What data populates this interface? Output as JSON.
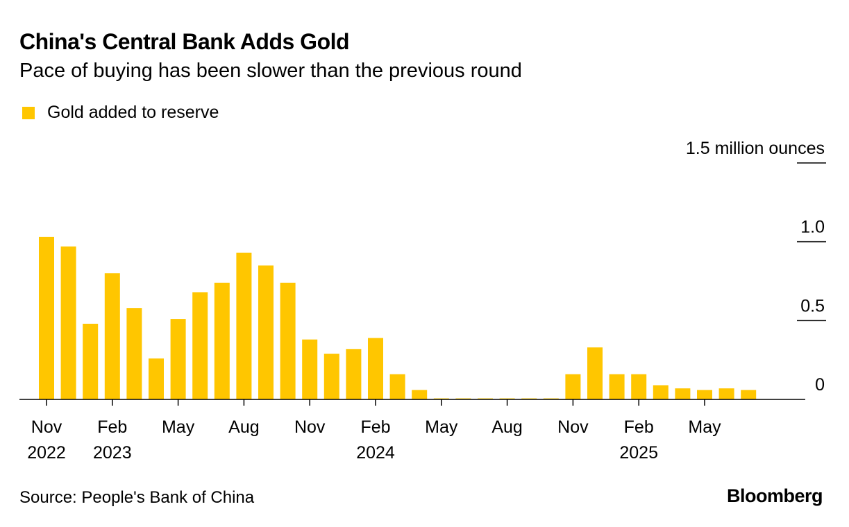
{
  "title": "China's Central Bank Adds Gold",
  "subtitle": "Pace of buying has been slower than the previous round",
  "source": "Source: People's Bank of China",
  "logo": "Bloomberg",
  "colors": {
    "bar": "#FFC600",
    "zero_bar": "#FFE680",
    "axis": "#000000"
  },
  "chart_data": {
    "type": "bar",
    "legend": [
      {
        "name": "Gold added to reserve",
        "color": "#FFC600"
      }
    ],
    "legend_placement": "top-left",
    "ylabel": "million ounces",
    "ylim": [
      0,
      1.5
    ],
    "y_ticks": [
      {
        "value": 0,
        "label": "0"
      },
      {
        "value": 0.5,
        "label": "0.5"
      },
      {
        "value": 1.0,
        "label": "1.0"
      },
      {
        "value": 1.5,
        "label": "1.5 million ounces"
      }
    ],
    "categories": [
      "Nov 2022",
      "Dec 2022",
      "Jan 2023",
      "Feb 2023",
      "Mar 2023",
      "Apr 2023",
      "May 2023",
      "Jun 2023",
      "Jul 2023",
      "Aug 2023",
      "Sep 2023",
      "Oct 2023",
      "Nov 2023",
      "Dec 2023",
      "Jan 2024",
      "Feb 2024",
      "Mar 2024",
      "Apr 2024",
      "May 2024",
      "Jun 2024",
      "Jul 2024",
      "Aug 2024",
      "Sep 2024",
      "Oct 2024",
      "Nov 2024",
      "Dec 2024",
      "Jan 2025",
      "Feb 2025",
      "Mar 2025",
      "Apr 2025",
      "May 2025",
      "Jun 2025",
      "Jul 2025"
    ],
    "series": [
      {
        "name": "Gold added to reserve",
        "values": [
          1.03,
          0.97,
          0.48,
          0.8,
          0.58,
          0.26,
          0.51,
          0.68,
          0.74,
          0.93,
          0.85,
          0.74,
          0.38,
          0.29,
          0.32,
          0.39,
          0.16,
          0.06,
          0,
          0,
          0,
          0,
          0,
          0,
          0.16,
          0.33,
          0.16,
          0.16,
          0.09,
          0.07,
          0.06,
          0.07,
          0.06
        ]
      }
    ],
    "x_ticks": [
      {
        "index": 0,
        "line1": "Nov",
        "line2": "2022"
      },
      {
        "index": 3,
        "line1": "Feb",
        "line2": "2023"
      },
      {
        "index": 6,
        "line1": "May",
        "line2": ""
      },
      {
        "index": 9,
        "line1": "Aug",
        "line2": ""
      },
      {
        "index": 12,
        "line1": "Nov",
        "line2": ""
      },
      {
        "index": 15,
        "line1": "Feb",
        "line2": "2024"
      },
      {
        "index": 18,
        "line1": "May",
        "line2": ""
      },
      {
        "index": 21,
        "line1": "Aug",
        "line2": ""
      },
      {
        "index": 24,
        "line1": "Nov",
        "line2": ""
      },
      {
        "index": 27,
        "line1": "Feb",
        "line2": "2025"
      },
      {
        "index": 30,
        "line1": "May",
        "line2": ""
      }
    ]
  }
}
